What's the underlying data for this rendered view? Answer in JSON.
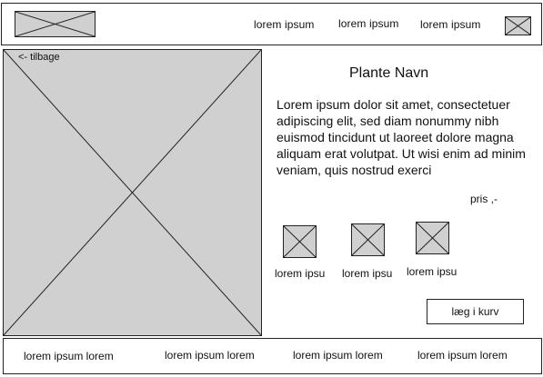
{
  "header": {
    "nav": [
      {
        "label": "lorem  ipsum"
      },
      {
        "label": "lorem  ipsum"
      },
      {
        "label": "lorem  ipsum"
      }
    ],
    "logo_icon": "image-placeholder-icon",
    "cart_icon": "image-placeholder-icon"
  },
  "product": {
    "back_label": "<- tilbage",
    "title": "Plante Navn",
    "description": "Lorem ipsum dolor sit amet, consectetuer adipiscing elit, sed diam nonummy nibh euismod tincidunt ut laoreet dolore magna aliquam erat volutpat. Ut wisi enim ad minim veniam, quis nostrud exerci",
    "price": "pris ,-",
    "thumbnails": [
      {
        "label": "lorem ipsu"
      },
      {
        "label": "lorem ipsu"
      },
      {
        "label": "lorem ipsu"
      }
    ],
    "cart_button_label": "læg i kurv"
  },
  "footer": {
    "links": [
      {
        "label": "lorem ipsum lorem"
      },
      {
        "label": "lorem ipsum lorem"
      },
      {
        "label": "lorem ipsum lorem"
      },
      {
        "label": "lorem ipsum lorem"
      }
    ]
  },
  "colors": {
    "placeholder_fill": "#d0d0d0",
    "line": "#222222",
    "background": "#ffffff"
  }
}
